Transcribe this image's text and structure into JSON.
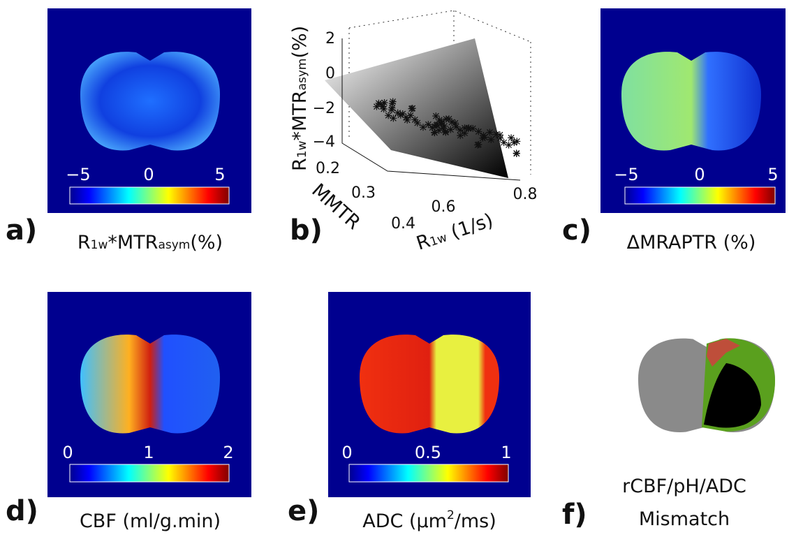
{
  "panels": [
    {
      "label": "a)",
      "caption": [
        "R",
        "1w",
        "*MTR",
        "asym",
        "(%)"
      ],
      "colorbar_ticks": [
        "−5",
        "0",
        "5"
      ]
    },
    {
      "label": "b)",
      "z_label": [
        "R",
        "1w",
        "*MTR",
        "asym",
        "(%)"
      ],
      "z_ticks": [
        "2",
        "0",
        "−2",
        "−4"
      ],
      "y_label": "MMTR",
      "y_ticks": [
        "0.2",
        "0.3",
        "0.4"
      ],
      "x_label": [
        "R",
        "1w",
        " (1/s)"
      ],
      "x_ticks": [
        "0.6",
        "0.8"
      ]
    },
    {
      "label": "c)",
      "caption": [
        "ΔMRAPTR (%)"
      ],
      "colorbar_ticks": [
        "−5",
        "0",
        "5"
      ]
    },
    {
      "label": "d)",
      "caption": [
        "CBF (ml/g.min)"
      ],
      "colorbar_ticks": [
        "0",
        "1",
        "2"
      ]
    },
    {
      "label": "e)",
      "caption": [
        "ADC (",
        "μm",
        "2",
        "/ms)"
      ],
      "colorbar_ticks": [
        "0",
        "0.5",
        "1"
      ]
    },
    {
      "label": "f)",
      "caption": [
        "rCBF/pH/ADC",
        "Mismatch"
      ]
    }
  ]
}
